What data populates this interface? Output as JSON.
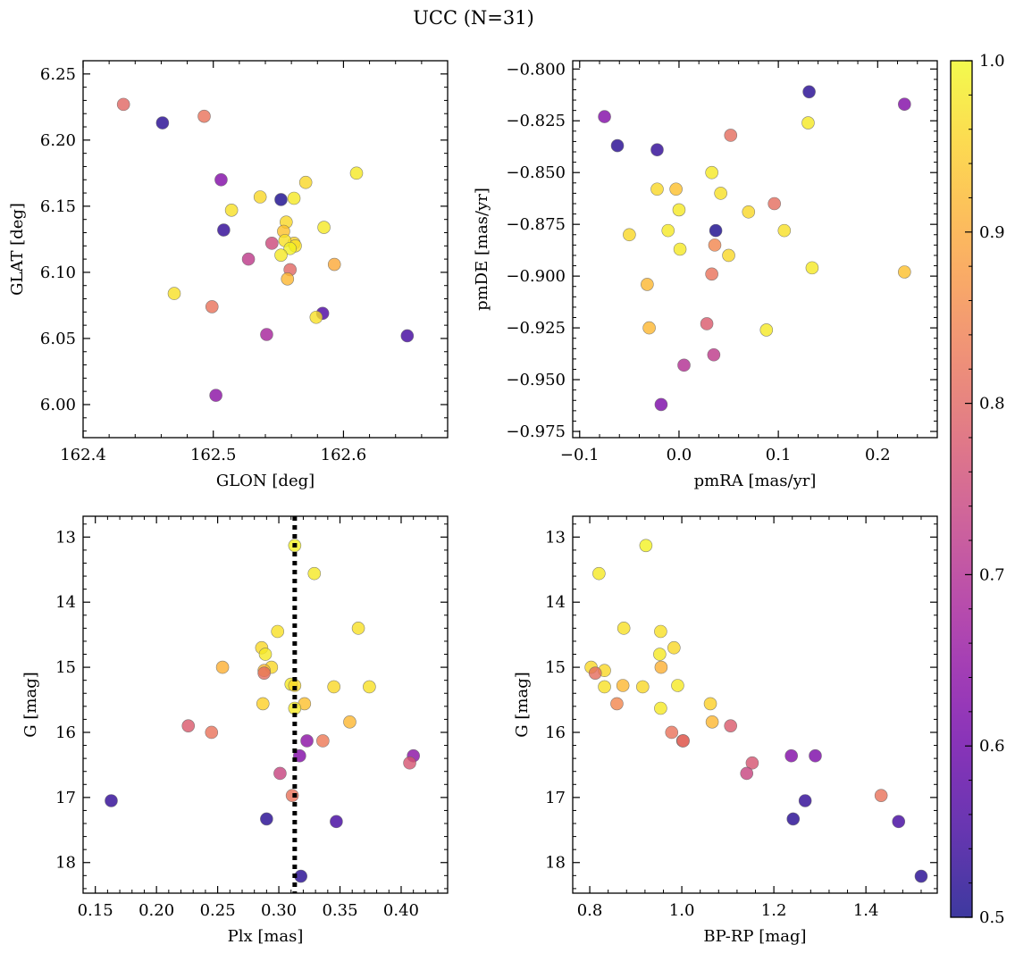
{
  "figure": {
    "title": "UCC (N=31)",
    "colorbar": {
      "vmin": 0.5,
      "vmax": 1.0,
      "ticks": [
        0.5,
        0.6,
        0.7,
        0.8,
        0.9,
        1.0
      ],
      "tick_labels": [
        "0.5",
        "0.6",
        "0.7",
        "0.8",
        "0.9",
        "1.0"
      ],
      "colormap": "plasma",
      "colormap_stops": [
        "#0d0887",
        "#46039f",
        "#7201a8",
        "#9c179e",
        "#bd3786",
        "#d8576b",
        "#ed7953",
        "#fb9f3a",
        "#fdca26",
        "#f0f921"
      ]
    },
    "marker": {
      "alpha": 0.8,
      "edge_color": "#666666"
    }
  },
  "chart_data": [
    {
      "type": "scatter",
      "title": "",
      "xlabel": "GLON [deg]",
      "ylabel": "GLAT [deg]",
      "xlim": [
        162.4,
        162.68
      ],
      "ylim": [
        5.975,
        6.26
      ],
      "xticks": [
        162.4,
        162.5,
        162.6
      ],
      "xtick_labels": [
        "162.4",
        "162.5",
        "162.6"
      ],
      "yticks": [
        6.0,
        6.05,
        6.1,
        6.15,
        6.2,
        6.25
      ],
      "ytick_labels": [
        "6.00",
        "6.05",
        "6.10",
        "6.15",
        "6.20",
        "6.25"
      ],
      "invert_y": false,
      "points": [
        {
          "x": 162.431,
          "y": 6.227,
          "c": 0.8
        },
        {
          "x": 162.461,
          "y": 6.213,
          "c": 0.52
        },
        {
          "x": 162.493,
          "y": 6.218,
          "c": 0.82
        },
        {
          "x": 162.506,
          "y": 6.17,
          "c": 0.63
        },
        {
          "x": 162.508,
          "y": 6.132,
          "c": 0.53
        },
        {
          "x": 162.514,
          "y": 6.147,
          "c": 0.97
        },
        {
          "x": 162.536,
          "y": 6.157,
          "c": 0.96
        },
        {
          "x": 162.552,
          "y": 6.155,
          "c": 0.51
        },
        {
          "x": 162.562,
          "y": 6.156,
          "c": 0.98
        },
        {
          "x": 162.571,
          "y": 6.168,
          "c": 0.96
        },
        {
          "x": 162.61,
          "y": 6.175,
          "c": 0.98
        },
        {
          "x": 162.556,
          "y": 6.138,
          "c": 0.96
        },
        {
          "x": 162.554,
          "y": 6.131,
          "c": 0.93
        },
        {
          "x": 162.585,
          "y": 6.134,
          "c": 0.98
        },
        {
          "x": 162.562,
          "y": 6.122,
          "c": 0.95
        },
        {
          "x": 162.555,
          "y": 6.124,
          "c": 0.97
        },
        {
          "x": 162.563,
          "y": 6.12,
          "c": 0.97
        },
        {
          "x": 162.545,
          "y": 6.122,
          "c": 0.75
        },
        {
          "x": 162.559,
          "y": 6.118,
          "c": 0.99
        },
        {
          "x": 162.552,
          "y": 6.113,
          "c": 0.98
        },
        {
          "x": 162.527,
          "y": 6.11,
          "c": 0.72
        },
        {
          "x": 162.593,
          "y": 6.106,
          "c": 0.9
        },
        {
          "x": 162.559,
          "y": 6.102,
          "c": 0.8
        },
        {
          "x": 162.557,
          "y": 6.095,
          "c": 0.92
        },
        {
          "x": 162.47,
          "y": 6.084,
          "c": 0.97
        },
        {
          "x": 162.499,
          "y": 6.074,
          "c": 0.82
        },
        {
          "x": 162.584,
          "y": 6.069,
          "c": 0.56
        },
        {
          "x": 162.579,
          "y": 6.066,
          "c": 0.97
        },
        {
          "x": 162.541,
          "y": 6.053,
          "c": 0.68
        },
        {
          "x": 162.649,
          "y": 6.052,
          "c": 0.55
        },
        {
          "x": 162.502,
          "y": 6.007,
          "c": 0.64
        }
      ]
    },
    {
      "type": "scatter",
      "title": "",
      "xlabel": "pmRA [mas/yr]",
      "ylabel": "pmDE [mas/yr]",
      "xlim": [
        -0.107,
        0.26
      ],
      "ylim": [
        -0.978,
        -0.796
      ],
      "xticks": [
        -0.1,
        0.0,
        0.1,
        0.2
      ],
      "xtick_labels": [
        "−0.1",
        "0.0",
        "0.1",
        "0.2"
      ],
      "yticks": [
        -0.975,
        -0.95,
        -0.925,
        -0.9,
        -0.875,
        -0.85,
        -0.825,
        -0.8
      ],
      "ytick_labels": [
        "−0.975",
        "−0.950",
        "−0.925",
        "−0.900",
        "−0.875",
        "−0.850",
        "−0.825",
        "−0.800"
      ],
      "invert_y": false,
      "points": [
        {
          "x": 0.131,
          "y": -0.811,
          "c": 0.52
        },
        {
          "x": 0.227,
          "y": -0.817,
          "c": 0.63
        },
        {
          "x": -0.075,
          "y": -0.823,
          "c": 0.63
        },
        {
          "x": 0.13,
          "y": -0.826,
          "c": 0.98
        },
        {
          "x": 0.052,
          "y": -0.832,
          "c": 0.81
        },
        {
          "x": -0.062,
          "y": -0.837,
          "c": 0.52
        },
        {
          "x": -0.022,
          "y": -0.839,
          "c": 0.53
        },
        {
          "x": 0.033,
          "y": -0.85,
          "c": 0.98
        },
        {
          "x": -0.022,
          "y": -0.858,
          "c": 0.96
        },
        {
          "x": -0.003,
          "y": -0.858,
          "c": 0.93
        },
        {
          "x": 0.042,
          "y": -0.86,
          "c": 0.97
        },
        {
          "x": 0.096,
          "y": -0.865,
          "c": 0.81
        },
        {
          "x": 0.0,
          "y": -0.868,
          "c": 0.98
        },
        {
          "x": 0.07,
          "y": -0.869,
          "c": 0.96
        },
        {
          "x": -0.011,
          "y": -0.878,
          "c": 0.98
        },
        {
          "x": 0.037,
          "y": -0.878,
          "c": 0.51
        },
        {
          "x": 0.106,
          "y": -0.878,
          "c": 0.97
        },
        {
          "x": -0.05,
          "y": -0.88,
          "c": 0.96
        },
        {
          "x": 0.036,
          "y": -0.885,
          "c": 0.85
        },
        {
          "x": 0.001,
          "y": -0.887,
          "c": 0.98
        },
        {
          "x": 0.05,
          "y": -0.89,
          "c": 0.96
        },
        {
          "x": 0.134,
          "y": -0.896,
          "c": 0.98
        },
        {
          "x": 0.227,
          "y": -0.898,
          "c": 0.93
        },
        {
          "x": 0.033,
          "y": -0.899,
          "c": 0.82
        },
        {
          "x": -0.032,
          "y": -0.904,
          "c": 0.92
        },
        {
          "x": 0.028,
          "y": -0.923,
          "c": 0.78
        },
        {
          "x": -0.03,
          "y": -0.925,
          "c": 0.92
        },
        {
          "x": 0.088,
          "y": -0.926,
          "c": 0.98
        },
        {
          "x": 0.035,
          "y": -0.938,
          "c": 0.72
        },
        {
          "x": 0.005,
          "y": -0.943,
          "c": 0.7
        },
        {
          "x": -0.018,
          "y": -0.962,
          "c": 0.62
        }
      ]
    },
    {
      "type": "scatter",
      "title": "",
      "xlabel": "Plx [mas]",
      "ylabel": "G [mag]",
      "xlim": [
        0.14,
        0.438
      ],
      "ylim": [
        12.68,
        18.47
      ],
      "xticks": [
        0.15,
        0.2,
        0.25,
        0.3,
        0.35,
        0.4
      ],
      "xtick_labels": [
        "0.15",
        "0.20",
        "0.25",
        "0.30",
        "0.35",
        "0.40"
      ],
      "yticks": [
        13,
        14,
        15,
        16,
        17,
        18
      ],
      "ytick_labels": [
        "13",
        "14",
        "15",
        "16",
        "17",
        "18"
      ],
      "invert_y": true,
      "vline": 0.313,
      "points": [
        {
          "x": 0.313,
          "y": 13.13,
          "c": 0.99
        },
        {
          "x": 0.329,
          "y": 13.56,
          "c": 0.98
        },
        {
          "x": 0.365,
          "y": 14.4,
          "c": 0.97
        },
        {
          "x": 0.299,
          "y": 14.45,
          "c": 0.97
        },
        {
          "x": 0.286,
          "y": 14.7,
          "c": 0.96
        },
        {
          "x": 0.289,
          "y": 14.8,
          "c": 0.98
        },
        {
          "x": 0.254,
          "y": 15.0,
          "c": 0.91
        },
        {
          "x": 0.294,
          "y": 15.0,
          "c": 0.96
        },
        {
          "x": 0.288,
          "y": 15.05,
          "c": 0.92
        },
        {
          "x": 0.288,
          "y": 15.09,
          "c": 0.81
        },
        {
          "x": 0.31,
          "y": 15.26,
          "c": 0.98
        },
        {
          "x": 0.313,
          "y": 15.28,
          "c": 0.96
        },
        {
          "x": 0.345,
          "y": 15.3,
          "c": 0.96
        },
        {
          "x": 0.374,
          "y": 15.3,
          "c": 0.97
        },
        {
          "x": 0.287,
          "y": 15.56,
          "c": 0.95
        },
        {
          "x": 0.321,
          "y": 15.56,
          "c": 0.93
        },
        {
          "x": 0.313,
          "y": 15.63,
          "c": 0.98
        },
        {
          "x": 0.358,
          "y": 15.84,
          "c": 0.92
        },
        {
          "x": 0.226,
          "y": 15.9,
          "c": 0.78
        },
        {
          "x": 0.245,
          "y": 16.0,
          "c": 0.82
        },
        {
          "x": 0.323,
          "y": 16.13,
          "c": 0.64
        },
        {
          "x": 0.336,
          "y": 16.13,
          "c": 0.83
        },
        {
          "x": 0.317,
          "y": 16.36,
          "c": 0.63
        },
        {
          "x": 0.41,
          "y": 16.36,
          "c": 0.64
        },
        {
          "x": 0.407,
          "y": 16.47,
          "c": 0.77
        },
        {
          "x": 0.301,
          "y": 16.63,
          "c": 0.74
        },
        {
          "x": 0.311,
          "y": 16.97,
          "c": 0.82
        },
        {
          "x": 0.163,
          "y": 17.05,
          "c": 0.53
        },
        {
          "x": 0.29,
          "y": 17.33,
          "c": 0.52
        },
        {
          "x": 0.347,
          "y": 17.37,
          "c": 0.55
        },
        {
          "x": 0.318,
          "y": 18.21,
          "c": 0.52
        }
      ]
    },
    {
      "type": "scatter",
      "title": "",
      "xlabel": "BP-RP [mag]",
      "ylabel": "G [mag]",
      "xlim": [
        0.763,
        1.555
      ],
      "ylim": [
        12.68,
        18.47
      ],
      "xticks": [
        0.8,
        1.0,
        1.2,
        1.4
      ],
      "xtick_labels": [
        "0.8",
        "1.0",
        "1.2",
        "1.4"
      ],
      "yticks": [
        13,
        14,
        15,
        16,
        17,
        18
      ],
      "ytick_labels": [
        "13",
        "14",
        "15",
        "16",
        "17",
        "18"
      ],
      "invert_y": true,
      "points": [
        {
          "x": 0.922,
          "y": 13.13,
          "c": 0.99
        },
        {
          "x": 0.82,
          "y": 13.56,
          "c": 0.98
        },
        {
          "x": 0.874,
          "y": 14.4,
          "c": 0.97
        },
        {
          "x": 0.954,
          "y": 14.45,
          "c": 0.97
        },
        {
          "x": 0.983,
          "y": 14.7,
          "c": 0.96
        },
        {
          "x": 0.952,
          "y": 14.8,
          "c": 0.98
        },
        {
          "x": 0.803,
          "y": 15.0,
          "c": 0.96
        },
        {
          "x": 0.955,
          "y": 15.0,
          "c": 0.91
        },
        {
          "x": 0.832,
          "y": 15.05,
          "c": 0.96
        },
        {
          "x": 0.812,
          "y": 15.09,
          "c": 0.81
        },
        {
          "x": 0.872,
          "y": 15.28,
          "c": 0.92
        },
        {
          "x": 0.991,
          "y": 15.28,
          "c": 0.98
        },
        {
          "x": 0.832,
          "y": 15.3,
          "c": 0.97
        },
        {
          "x": 0.915,
          "y": 15.3,
          "c": 0.96
        },
        {
          "x": 0.859,
          "y": 15.56,
          "c": 0.85
        },
        {
          "x": 1.062,
          "y": 15.56,
          "c": 0.95
        },
        {
          "x": 0.954,
          "y": 15.63,
          "c": 0.98
        },
        {
          "x": 1.066,
          "y": 15.84,
          "c": 0.92
        },
        {
          "x": 1.106,
          "y": 15.9,
          "c": 0.78
        },
        {
          "x": 0.978,
          "y": 16.0,
          "c": 0.82
        },
        {
          "x": 1.002,
          "y": 16.13,
          "c": 0.83
        },
        {
          "x": 1.003,
          "y": 16.13,
          "c": 0.8
        },
        {
          "x": 1.238,
          "y": 16.36,
          "c": 0.63
        },
        {
          "x": 1.29,
          "y": 16.36,
          "c": 0.62
        },
        {
          "x": 1.153,
          "y": 16.47,
          "c": 0.77
        },
        {
          "x": 1.141,
          "y": 16.63,
          "c": 0.74
        },
        {
          "x": 1.433,
          "y": 16.97,
          "c": 0.82
        },
        {
          "x": 1.268,
          "y": 17.05,
          "c": 0.53
        },
        {
          "x": 1.242,
          "y": 17.33,
          "c": 0.52
        },
        {
          "x": 1.471,
          "y": 17.37,
          "c": 0.55
        },
        {
          "x": 1.52,
          "y": 18.21,
          "c": 0.52
        }
      ]
    }
  ]
}
